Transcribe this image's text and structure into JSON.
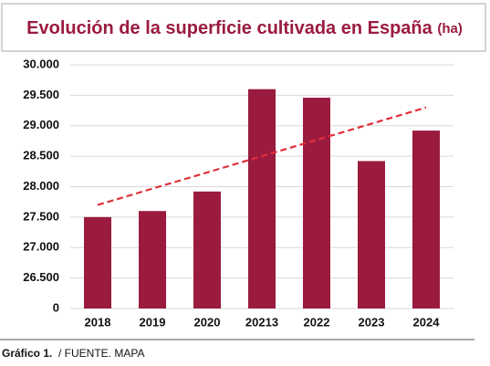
{
  "chart_data": {
    "type": "bar",
    "title": "Evolución de la superficie cultivada en España",
    "title_unit": "(ha)",
    "categories": [
      "2018",
      "2019",
      "2020",
      "20213",
      "2022",
      "2023",
      "2024"
    ],
    "values": [
      27500,
      27600,
      27920,
      29600,
      29460,
      28420,
      28920
    ],
    "color": "#9b1b3f",
    "trend": {
      "values": [
        27700,
        27967,
        28233,
        28500,
        28767,
        29033,
        29300
      ],
      "color": "#e0303a",
      "dashed": true
    },
    "ylim": [
      26000,
      30000
    ],
    "axis_break": true,
    "yticks": [
      {
        "value": 30000,
        "label": "30.000"
      },
      {
        "value": 29500,
        "label": "29.500"
      },
      {
        "value": 29000,
        "label": "29.000"
      },
      {
        "value": 28500,
        "label": "28.500"
      },
      {
        "value": 28000,
        "label": "28.000"
      },
      {
        "value": 27500,
        "label": "27.500"
      },
      {
        "value": 27000,
        "label": "27.000"
      },
      {
        "value": 26500,
        "label": "26.500"
      },
      0
    ],
    "grid": true,
    "footer": {
      "label": "Gráfico 1.",
      "source": "/ FUENTE. MAPA"
    }
  }
}
